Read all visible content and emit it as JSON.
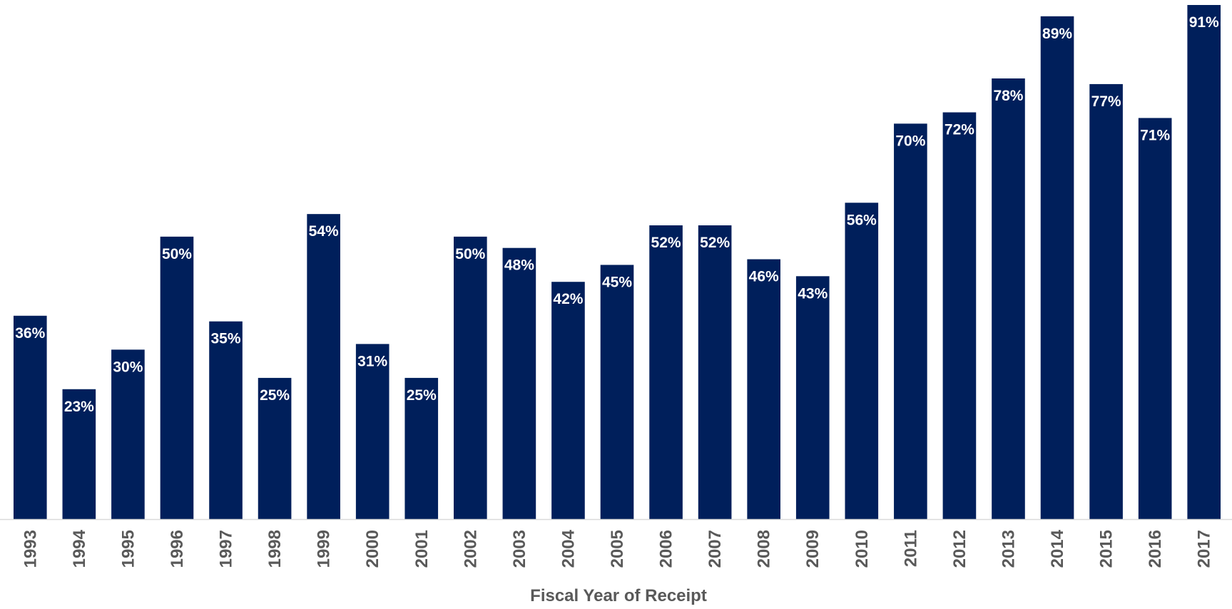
{
  "chart_data": {
    "type": "bar",
    "categories": [
      "1993",
      "1994",
      "1995",
      "1996",
      "1997",
      "1998",
      "1999",
      "2000",
      "2001",
      "2002",
      "2003",
      "2004",
      "2005",
      "2006",
      "2007",
      "2008",
      "2009",
      "2010",
      "2011",
      "2012",
      "2013",
      "2014",
      "2015",
      "2016",
      "2017"
    ],
    "values": [
      36,
      23,
      30,
      50,
      35,
      25,
      54,
      31,
      25,
      50,
      48,
      42,
      45,
      52,
      52,
      46,
      43,
      56,
      70,
      72,
      78,
      89,
      77,
      71,
      91
    ],
    "value_labels": [
      "36%",
      "23%",
      "30%",
      "50%",
      "35%",
      "25%",
      "54%",
      "31%",
      "25%",
      "50%",
      "48%",
      "42%",
      "45%",
      "52%",
      "52%",
      "46%",
      "43%",
      "56%",
      "70%",
      "72%",
      "78%",
      "89%",
      "77%",
      "71%",
      "91%"
    ],
    "title": "",
    "xlabel": "Fiscal Year of Receipt",
    "ylabel": "",
    "ylim": [
      0,
      91
    ],
    "grid": false,
    "legend": "none",
    "colors": {
      "bar": "#001f5b",
      "bar_label": "#ffffff",
      "tick_label": "#595959",
      "axis_title": "#595959",
      "axis_line": "#d9d9d9"
    }
  }
}
